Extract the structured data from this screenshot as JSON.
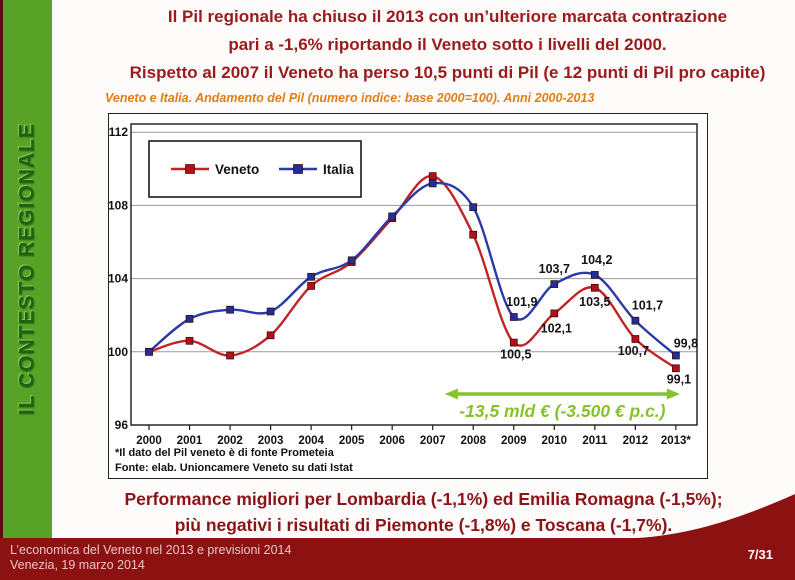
{
  "sidebar": {
    "label": "IL CONTESTO REGIONALE"
  },
  "header": {
    "line1": "Il Pil regionale ha chiuso il 2013 con un’ulteriore marcata contrazione",
    "line2": "pari a -1,6% riportando il Veneto sotto i livelli del 2000.",
    "line3": "Rispetto al 2007 il Veneto ha perso 10,5 punti di Pil (e 12 punti di Pil pro capite)"
  },
  "chart_subtitle": "Veneto e Italia. Andamento del Pil (numero indice: base 2000=100). Anni 2000-2013",
  "chart_data": {
    "type": "line",
    "title": "Veneto e Italia. Andamento del Pil (numero indice: base 2000=100). Anni 2000-2013",
    "categories": [
      "2000",
      "2001",
      "2002",
      "2003",
      "2004",
      "2005",
      "2006",
      "2007",
      "2008",
      "2009",
      "2010",
      "2011",
      "2012",
      "2013*"
    ],
    "ylim": [
      96,
      112
    ],
    "yticks": [
      96,
      100,
      104,
      108,
      112
    ],
    "grid": true,
    "legend_position": "top-left",
    "series": [
      {
        "name": "Veneto",
        "color": "#c22326",
        "marker_color": "#b01219",
        "values": [
          100.0,
          100.6,
          99.8,
          100.9,
          103.6,
          104.9,
          107.3,
          109.6,
          106.4,
          100.5,
          102.1,
          103.5,
          100.7,
          99.1
        ],
        "point_labels": [
          {
            "i": 9,
            "text": "100,5",
            "dx": 2,
            "dy": 16
          },
          {
            "i": 10,
            "text": "102,1",
            "dx": 2,
            "dy": 19
          },
          {
            "i": 11,
            "text": "103,5",
            "dx": 0,
            "dy": 18
          },
          {
            "i": 12,
            "text": "100,7",
            "dx": -2,
            "dy": 16
          },
          {
            "i": 13,
            "text": "99,1",
            "dx": 3,
            "dy": 15
          }
        ]
      },
      {
        "name": "Italia",
        "color": "#2b3aa5",
        "marker_color": "#20309b",
        "values": [
          100.0,
          101.8,
          102.3,
          102.2,
          104.1,
          105.0,
          107.4,
          109.2,
          107.9,
          101.9,
          103.7,
          104.2,
          101.7,
          99.8
        ],
        "point_labels": [
          {
            "i": 9,
            "text": "101,9",
            "dx": 8,
            "dy": -11
          },
          {
            "i": 10,
            "text": "103,7",
            "dx": 0,
            "dy": -11
          },
          {
            "i": 11,
            "text": "104,2",
            "dx": 2,
            "dy": -11
          },
          {
            "i": 12,
            "text": "101,7",
            "dx": 12,
            "dy": -11
          },
          {
            "i": 13,
            "text": "99,8",
            "dx": 10,
            "dy": -8
          }
        ]
      }
    ],
    "annotation": {
      "text": "-13,5 mld € (-3.500 € p.c.)",
      "color": "#84c32b",
      "from_year_index": 7.3,
      "to_year_index": 13.1
    },
    "footnotes": [
      "*Il dato del Pil veneto è di fonte Prometeia",
      "Fonte: elab. Unioncamere Veneto su dati Istat"
    ]
  },
  "statement": {
    "line1": "Performance migliori per Lombardia (-1,1%) ed Emilia Romagna (-1,5%);",
    "line2": "più negativi i risultati di Piemonte (-1,8%) e Toscana (-1,7%)."
  },
  "footer": {
    "line1": "L’economica del Veneto nel 2013 e previsioni 2014",
    "line2": "Venezia, 19 marzo 2014",
    "page": "7/31"
  },
  "colors": {
    "title_red": "#9a1b1c",
    "statement_red": "#8c1317",
    "subtitle_orange": "#dd7e1a",
    "sidebar_green": "#58a226",
    "sidebar_text_green": "#1d6410",
    "footer_red": "#8c1111",
    "arrow_green": "#84c32b",
    "veneto_red": "#c22326",
    "italia_blue": "#2b3aa5"
  }
}
